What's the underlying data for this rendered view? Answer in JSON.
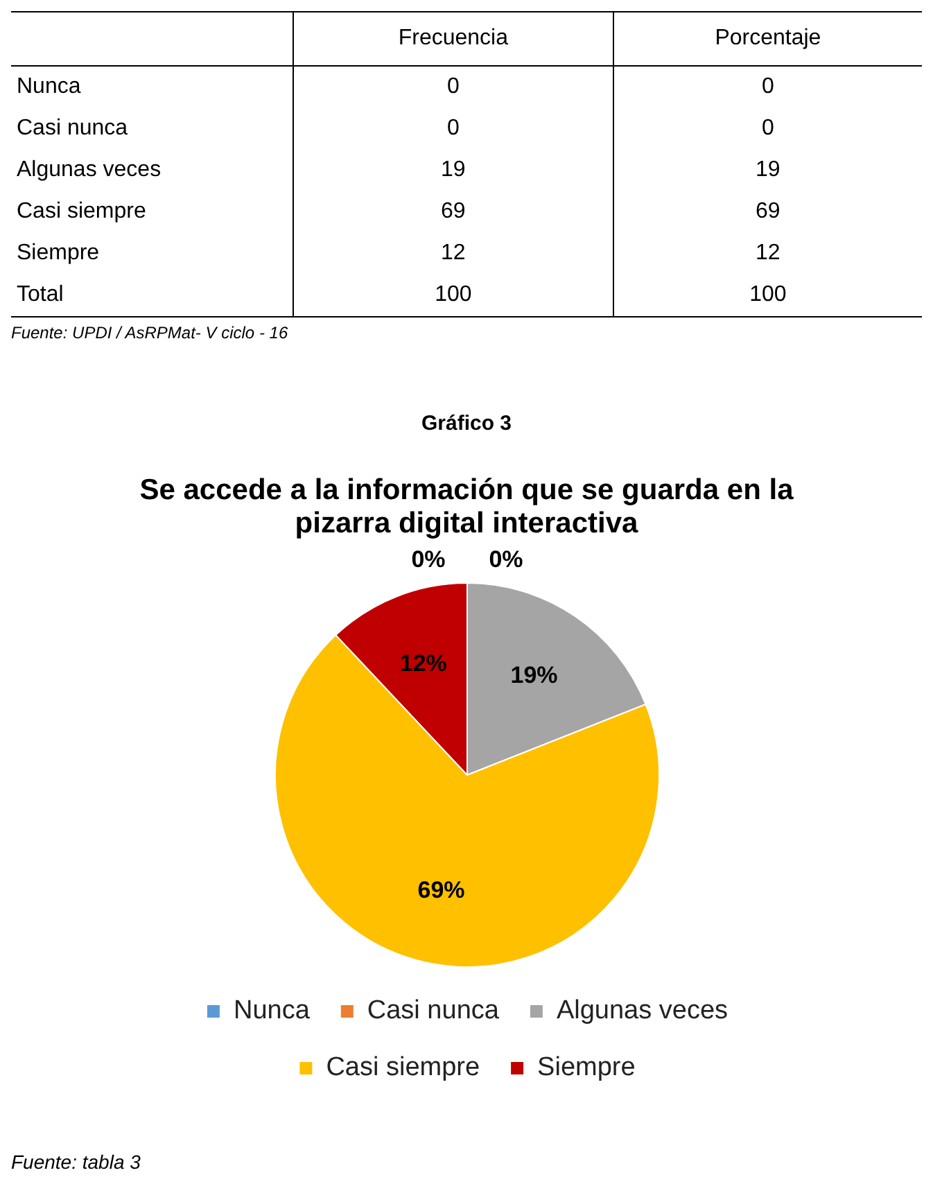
{
  "chart_data": [
    {
      "type": "other",
      "categories": [
        "Nunca",
        "Casi nunca",
        "Algunas veces",
        "Casi siempre",
        "Siempre",
        "Total"
      ],
      "series": [
        {
          "name": "Frecuencia",
          "values": [
            0,
            0,
            19,
            69,
            12,
            100
          ]
        },
        {
          "name": "Porcentaje",
          "values": [
            0,
            0,
            19,
            69,
            12,
            100
          ]
        }
      ],
      "data_labels": true,
      "annotations": [
        "Fuente: UPDI / AsRPMat- V ciclo - 16"
      ]
    },
    {
      "type": "pie",
      "title": "Se accede a la información que se guarda en la pizarra digital interactiva",
      "categories": [
        "Nunca",
        "Casi nunca",
        "Algunas veces",
        "Casi siempre",
        "Siempre"
      ],
      "values": [
        0,
        0,
        19,
        69,
        12
      ],
      "value_labels": [
        "0%",
        "0%",
        "19%",
        "69%",
        "12%"
      ],
      "colors": [
        "#5b9bd5",
        "#ed7d31",
        "#a5a5a5",
        "#ffc000",
        "#c00000"
      ],
      "legend": "bottom",
      "annotations": [
        "Gráfico 3",
        "Fuente: tabla 3"
      ]
    }
  ]
}
